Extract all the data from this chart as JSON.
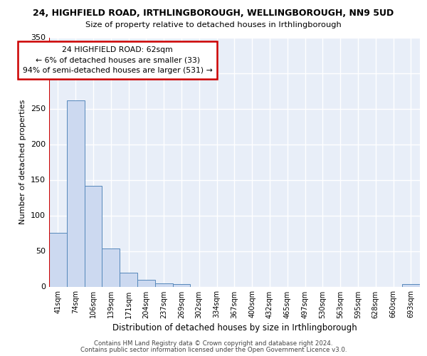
{
  "title1": "24, HIGHFIELD ROAD, IRTHLINGBOROUGH, WELLINGBOROUGH, NN9 5UD",
  "title2": "Size of property relative to detached houses in Irthlingborough",
  "xlabel": "Distribution of detached houses by size in Irthlingborough",
  "ylabel": "Number of detached properties",
  "footer1": "Contains HM Land Registry data © Crown copyright and database right 2024.",
  "footer2": "Contains public sector information licensed under the Open Government Licence v3.0.",
  "tick_labels": [
    "41sqm",
    "74sqm",
    "106sqm",
    "139sqm",
    "171sqm",
    "204sqm",
    "237sqm",
    "269sqm",
    "302sqm",
    "334sqm",
    "367sqm",
    "400sqm",
    "432sqm",
    "465sqm",
    "497sqm",
    "530sqm",
    "563sqm",
    "595sqm",
    "628sqm",
    "660sqm",
    "693sqm"
  ],
  "bar_values": [
    76,
    262,
    142,
    54,
    20,
    10,
    5,
    4,
    0,
    0,
    0,
    0,
    0,
    0,
    0,
    0,
    0,
    0,
    0,
    0,
    4
  ],
  "bar_color": "#ccd9f0",
  "bar_edge_color": "#5588bb",
  "ann_line1": "24 HIGHFIELD ROAD: 62sqm",
  "ann_line2": "← 6% of detached houses are smaller (33)",
  "ann_line3": "94% of semi-detached houses are larger (531) →",
  "ylim_max": 350,
  "yticks": [
    0,
    50,
    100,
    150,
    200,
    250,
    300,
    350
  ],
  "bg_color": "#e8eef8",
  "grid_color": "#ffffff",
  "red_color": "#cc0000",
  "white": "#ffffff"
}
